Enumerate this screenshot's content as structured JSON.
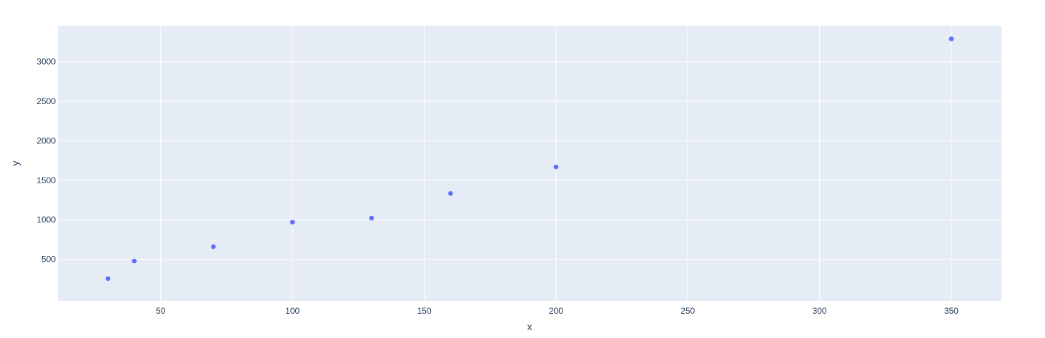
{
  "chart_data": {
    "type": "scatter",
    "xlabel": "x",
    "ylabel": "y",
    "xlim": [
      11,
      369
    ],
    "ylim": [
      -27,
      3458
    ],
    "x_ticks": [
      50,
      100,
      150,
      200,
      250,
      300,
      350
    ],
    "y_ticks": [
      500,
      1000,
      1500,
      2000,
      2500,
      3000
    ],
    "grid": true,
    "series": [
      {
        "points": [
          {
            "x": 30,
            "y": 256
          },
          {
            "x": 40,
            "y": 478
          },
          {
            "x": 70,
            "y": 660
          },
          {
            "x": 100,
            "y": 970
          },
          {
            "x": 130,
            "y": 1021
          },
          {
            "x": 160,
            "y": 1334
          },
          {
            "x": 200,
            "y": 1670
          },
          {
            "x": 350,
            "y": 3291
          }
        ]
      }
    ],
    "colors": {
      "plot_background": "#e5ecf6",
      "grid": "#ffffff",
      "marker": "#636efa",
      "text": "#2a3f5f"
    }
  }
}
